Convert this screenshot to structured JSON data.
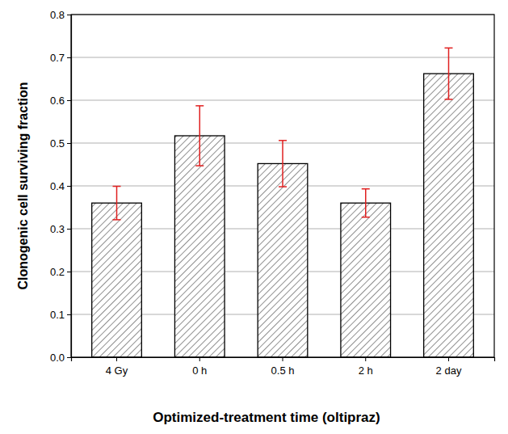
{
  "chart_data": {
    "type": "bar",
    "x_label": "Optimized-treatment time (oltipraz)",
    "y_label": "Clonogenic cell surviving fraction",
    "categories": [
      "4 Gy",
      "0 h",
      "0.5 h",
      "2 h",
      "2 day"
    ],
    "values": [
      0.36,
      0.517,
      0.452,
      0.36,
      0.662
    ],
    "errors": [
      0.039,
      0.07,
      0.054,
      0.033,
      0.06
    ],
    "color": "#444444",
    "ylim": [
      0,
      0.8
    ],
    "yticks": [
      {
        "value": 0,
        "label": "0.0"
      },
      0.1,
      0.2,
      0.3,
      0.4,
      0.5,
      0.6,
      0.7,
      0.8
    ],
    "grid": true
  }
}
